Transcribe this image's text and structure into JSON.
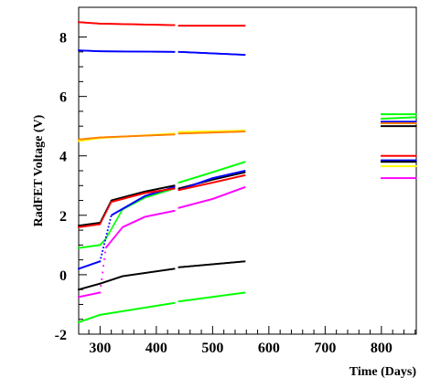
{
  "chart_data": {
    "type": "scatter",
    "title": "",
    "xlabel": "Time (Days)",
    "ylabel": "RadFET Voltage (V)",
    "xlim": [
      262,
      862
    ],
    "ylim": [
      -2,
      9
    ],
    "x_ticks": [
      300,
      400,
      500,
      600,
      700,
      800
    ],
    "y_ticks": [
      -2,
      0,
      2,
      4,
      6,
      8
    ],
    "grid": false,
    "legend": "none",
    "segments": [
      [
        262,
        300
      ],
      [
        300,
        432
      ],
      [
        440,
        558
      ],
      [
        800,
        862
      ]
    ],
    "series": [
      {
        "color": "#ff0000",
        "values": [
          [
            262,
            8.5
          ],
          [
            300,
            8.45
          ],
          [
            432,
            8.4
          ],
          [
            440,
            8.38
          ],
          [
            558,
            8.38
          ],
          [
            800,
            4.0
          ],
          [
            862,
            4.0
          ]
        ]
      },
      {
        "color": "#0000ff",
        "values": [
          [
            262,
            7.55
          ],
          [
            300,
            7.52
          ],
          [
            432,
            7.5
          ],
          [
            440,
            7.5
          ],
          [
            558,
            7.4
          ],
          [
            800,
            3.85
          ],
          [
            862,
            3.85
          ]
        ]
      },
      {
        "color": "#ff00ff",
        "values": [
          [
            262,
            -0.75
          ],
          [
            300,
            -0.6
          ],
          [
            310,
            0.9
          ],
          [
            340,
            1.6
          ],
          [
            380,
            1.95
          ],
          [
            432,
            2.15
          ],
          [
            440,
            2.25
          ],
          [
            500,
            2.55
          ],
          [
            558,
            2.95
          ],
          [
            800,
            3.25
          ],
          [
            862,
            3.25
          ]
        ]
      },
      {
        "color": "#ffff00",
        "values": [
          [
            262,
            4.5
          ],
          [
            300,
            4.6
          ],
          [
            432,
            4.75
          ],
          [
            440,
            4.8
          ],
          [
            558,
            4.85
          ],
          [
            800,
            3.65
          ],
          [
            862,
            3.65
          ]
        ]
      },
      {
        "color": "#00ff00",
        "values": [
          [
            262,
            0.9
          ],
          [
            300,
            1.0
          ],
          [
            310,
            1.2
          ],
          [
            340,
            2.2
          ],
          [
            380,
            2.6
          ],
          [
            432,
            2.9
          ],
          [
            440,
            3.1
          ],
          [
            500,
            3.45
          ],
          [
            558,
            3.8
          ],
          [
            800,
            5.25
          ],
          [
            862,
            5.3
          ]
        ]
      },
      {
        "color": "#00ff00",
        "values": [
          [
            262,
            -1.6
          ],
          [
            300,
            -1.35
          ],
          [
            432,
            -0.95
          ],
          [
            440,
            -0.9
          ],
          [
            558,
            -0.6
          ],
          [
            800,
            5.4
          ],
          [
            862,
            5.4
          ]
        ]
      },
      {
        "color": "#000000",
        "values": [
          [
            262,
            1.65
          ],
          [
            300,
            1.75
          ],
          [
            320,
            2.5
          ],
          [
            380,
            2.8
          ],
          [
            432,
            3.0
          ],
          [
            440,
            2.9
          ],
          [
            500,
            3.2
          ],
          [
            558,
            3.45
          ],
          [
            800,
            3.8
          ],
          [
            862,
            3.8
          ]
        ]
      },
      {
        "color": "#000000",
        "values": [
          [
            262,
            -0.5
          ],
          [
            300,
            -0.3
          ],
          [
            340,
            -0.05
          ],
          [
            432,
            0.2
          ],
          [
            440,
            0.25
          ],
          [
            558,
            0.45
          ],
          [
            800,
            5.0
          ],
          [
            862,
            5.0
          ]
        ]
      },
      {
        "color": "#0000ff",
        "values": [
          [
            262,
            0.2
          ],
          [
            300,
            0.45
          ],
          [
            320,
            2.0
          ],
          [
            380,
            2.65
          ],
          [
            432,
            2.95
          ],
          [
            440,
            2.85
          ],
          [
            500,
            3.25
          ],
          [
            558,
            3.5
          ],
          [
            800,
            5.15
          ],
          [
            862,
            5.15
          ]
        ]
      },
      {
        "color": "#ff0000",
        "values": [
          [
            262,
            1.6
          ],
          [
            300,
            1.7
          ],
          [
            320,
            2.45
          ],
          [
            380,
            2.75
          ],
          [
            432,
            2.9
          ],
          [
            440,
            2.85
          ],
          [
            500,
            3.1
          ],
          [
            558,
            3.35
          ],
          [
            800,
            5.1
          ],
          [
            862,
            5.1
          ]
        ]
      },
      {
        "color": "#ff8000",
        "values": [
          [
            262,
            4.55
          ],
          [
            300,
            4.62
          ],
          [
            432,
            4.72
          ],
          [
            440,
            4.75
          ],
          [
            558,
            4.82
          ],
          [
            800,
            5.1
          ],
          [
            862,
            5.1
          ]
        ]
      }
    ]
  }
}
